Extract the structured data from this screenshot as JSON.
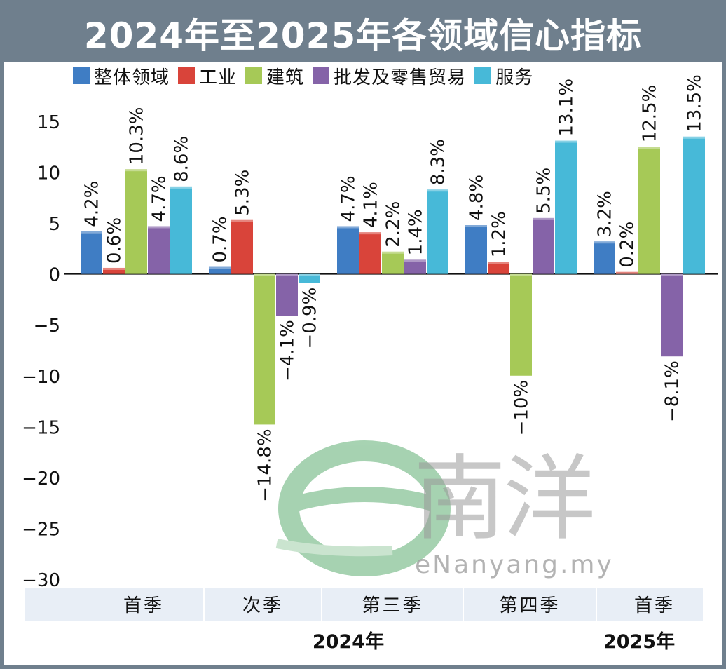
{
  "title": "2024年至2025年各领域信心指标",
  "legend": [
    {
      "label": "整体领域",
      "color": "#3f7dc4"
    },
    {
      "label": "工业",
      "color": "#d9443a"
    },
    {
      "label": "建筑",
      "color": "#a6c957"
    },
    {
      "label": "批发及零售贸易",
      "color": "#8563a8"
    },
    {
      "label": "服务",
      "color": "#47b9d8"
    }
  ],
  "chart_data": {
    "type": "bar",
    "title": "2024年至2025年各领域信心指标",
    "categories": [
      "首季",
      "次季",
      "第三季",
      "第四季",
      "首季"
    ],
    "year_groups": [
      {
        "label": "2024年",
        "categories": [
          "首季",
          "次季",
          "第三季",
          "第四季"
        ]
      },
      {
        "label": "2025年",
        "categories": [
          "首季"
        ]
      }
    ],
    "series": [
      {
        "name": "整体领域",
        "color": "#3f7dc4",
        "values": [
          4.2,
          0.7,
          4.7,
          4.8,
          3.2
        ]
      },
      {
        "name": "工业",
        "color": "#d9443a",
        "values": [
          0.6,
          5.3,
          4.1,
          1.2,
          0.2
        ]
      },
      {
        "name": "建筑",
        "color": "#a6c957",
        "values": [
          10.3,
          -14.8,
          2.2,
          -10,
          12.5
        ]
      },
      {
        "name": "批发及零售贸易",
        "color": "#8563a8",
        "values": [
          4.7,
          -4.1,
          1.4,
          5.5,
          -8.1
        ]
      },
      {
        "name": "服务",
        "color": "#47b9d8",
        "values": [
          8.6,
          -0.9,
          8.3,
          13.1,
          13.5
        ]
      }
    ],
    "value_labels": [
      [
        "4.2%",
        "0.6%",
        "10.3%",
        "4.7%",
        "8.6%"
      ],
      [
        "0.7%",
        "5.3%",
        "−14.8%",
        "−4.1%",
        "−0.9%"
      ],
      [
        "4.7%",
        "4.1%",
        "2.2%",
        "1.4%",
        "8.3%"
      ],
      [
        "4.8%",
        "1.2%",
        "−10%",
        "5.5%",
        "13.1%"
      ],
      [
        "3.2%",
        "0.2%",
        "12.5%",
        "−8.1%",
        "13.5%"
      ]
    ],
    "missing": [
      [],
      [],
      [],
      [
        "服务"
      ],
      [
        "建筑"
      ]
    ],
    "ylim": [
      -30,
      15
    ],
    "yticks": [
      15,
      10,
      5,
      0,
      -5,
      -10,
      -15,
      -20,
      -25,
      -30
    ],
    "ytick_labels": [
      "15",
      "10",
      "5",
      "0",
      "−5",
      "−10",
      "−15",
      "−20",
      "−25",
      "−30"
    ],
    "xlabel": "",
    "ylabel": "",
    "legend_position": "top",
    "grid": false
  },
  "watermark": {
    "logo_text": "南洋",
    "url": "eNanyang.my"
  }
}
